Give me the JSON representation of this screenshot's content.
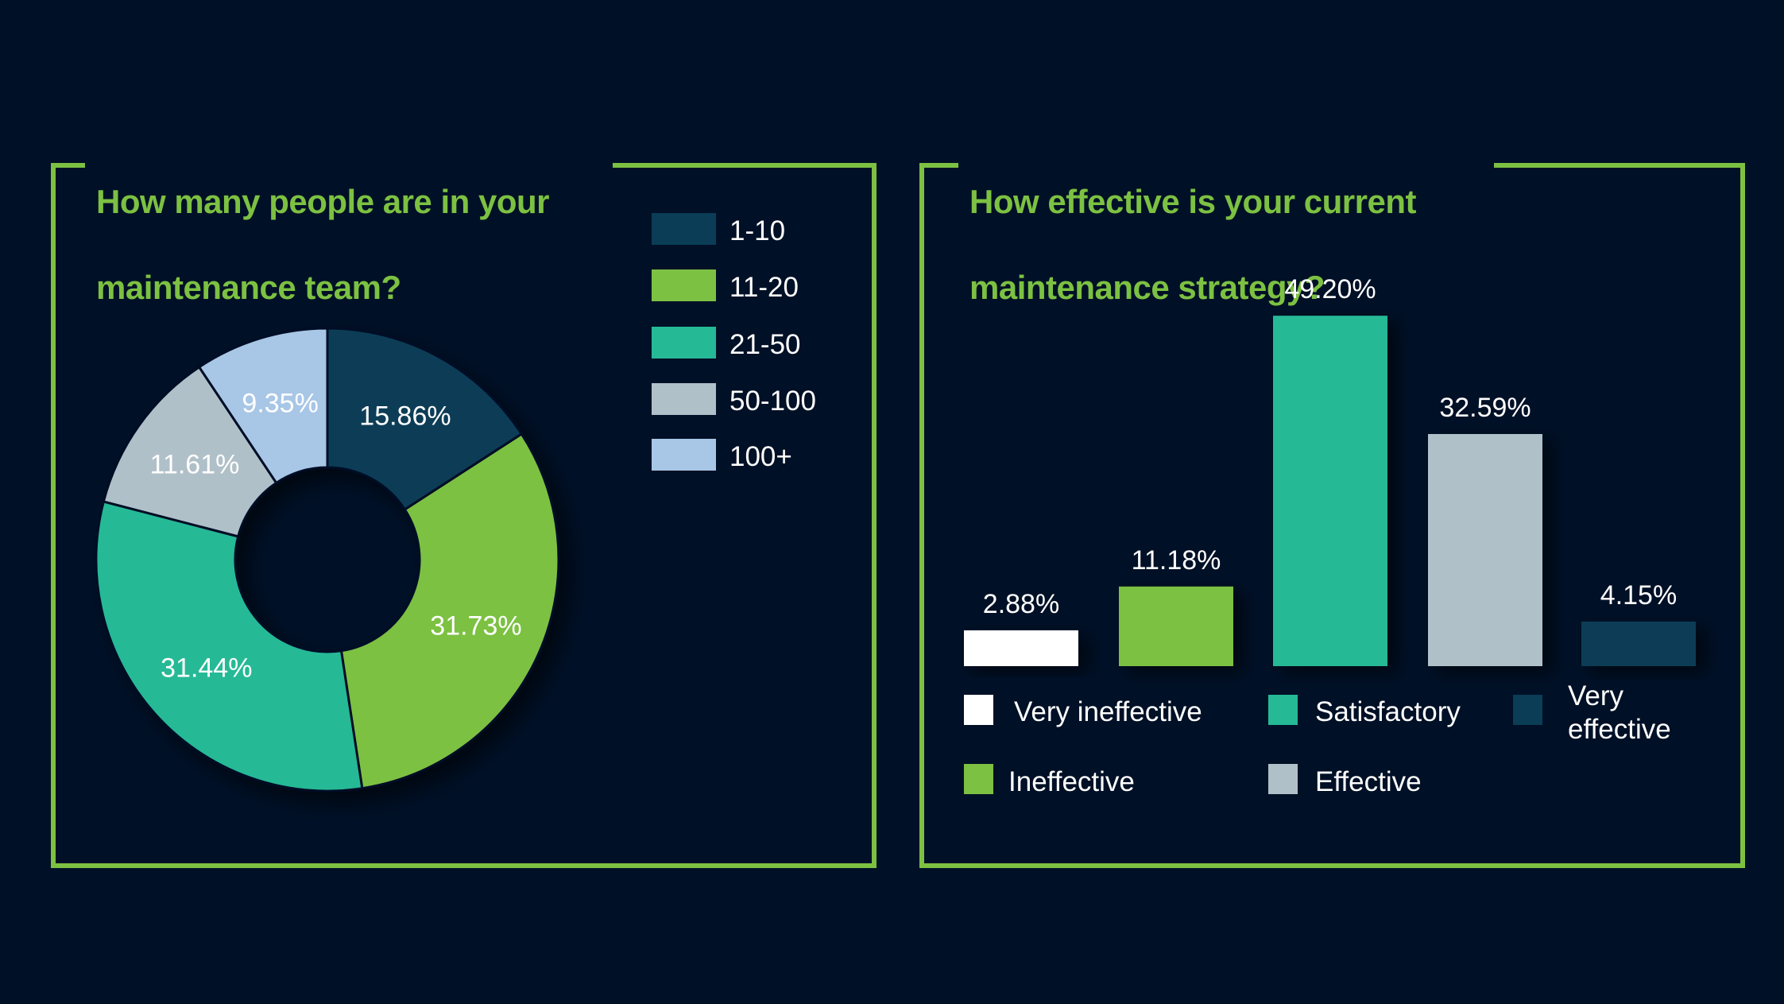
{
  "colors": {
    "background": "#001026",
    "frame": "#7cc142",
    "title": "#7cc142",
    "text": "#ffffff"
  },
  "chart_data": [
    {
      "type": "pie",
      "donut": true,
      "title": "How many people are in your maintenance team?",
      "title_lines": [
        "How many people are in your",
        "maintenance team?"
      ],
      "categories": [
        "1-10",
        "11-20",
        "21-50",
        "50-100",
        "100+"
      ],
      "values": [
        15.86,
        31.73,
        31.44,
        11.61,
        9.35
      ],
      "labels": [
        "15.86%",
        "31.73%",
        "31.44%",
        "11.61%",
        "9.35%"
      ],
      "colors": [
        "#0b3d56",
        "#7cc142",
        "#25b996",
        "#b0c0c8",
        "#a8c6e6"
      ],
      "legend": [
        {
          "label": "1-10",
          "color": "#0b3d56"
        },
        {
          "label": "11-20",
          "color": "#7cc142"
        },
        {
          "label": "21-50",
          "color": "#25b996"
        },
        {
          "label": "50-100",
          "color": "#b0c0c8"
        },
        {
          "label": "100+",
          "color": "#a8c6e6"
        }
      ],
      "legend_position": "top-right",
      "unit": "%"
    },
    {
      "type": "bar",
      "title": "How effective is your current maintenance strategy?",
      "title_lines": [
        "How effective is your current",
        "maintenance strategy?"
      ],
      "categories": [
        "Very ineffective",
        "Ineffective",
        "Satisfactory",
        "Effective",
        "Very effective"
      ],
      "values": [
        2.88,
        11.18,
        49.2,
        32.59,
        4.15
      ],
      "labels": [
        "2.88%",
        "11.18%",
        "49.20%",
        "32.59%",
        "4.15%"
      ],
      "colors": [
        "#ffffff",
        "#7cc142",
        "#25b996",
        "#b0c0c8",
        "#0b3d56"
      ],
      "legend": [
        {
          "label": "Very ineffective",
          "color": "#ffffff"
        },
        {
          "label": "Satisfactory",
          "color": "#25b996"
        },
        {
          "label": "Very\neffective",
          "color": "#0b3d56"
        },
        {
          "label": "Ineffective",
          "color": "#7cc142"
        },
        {
          "label": "Effective",
          "color": "#b0c0c8"
        }
      ],
      "legend_position": "bottom",
      "xlabel": "",
      "ylabel": "",
      "ylim": [
        0,
        50
      ],
      "grid": false,
      "unit": "%"
    }
  ]
}
